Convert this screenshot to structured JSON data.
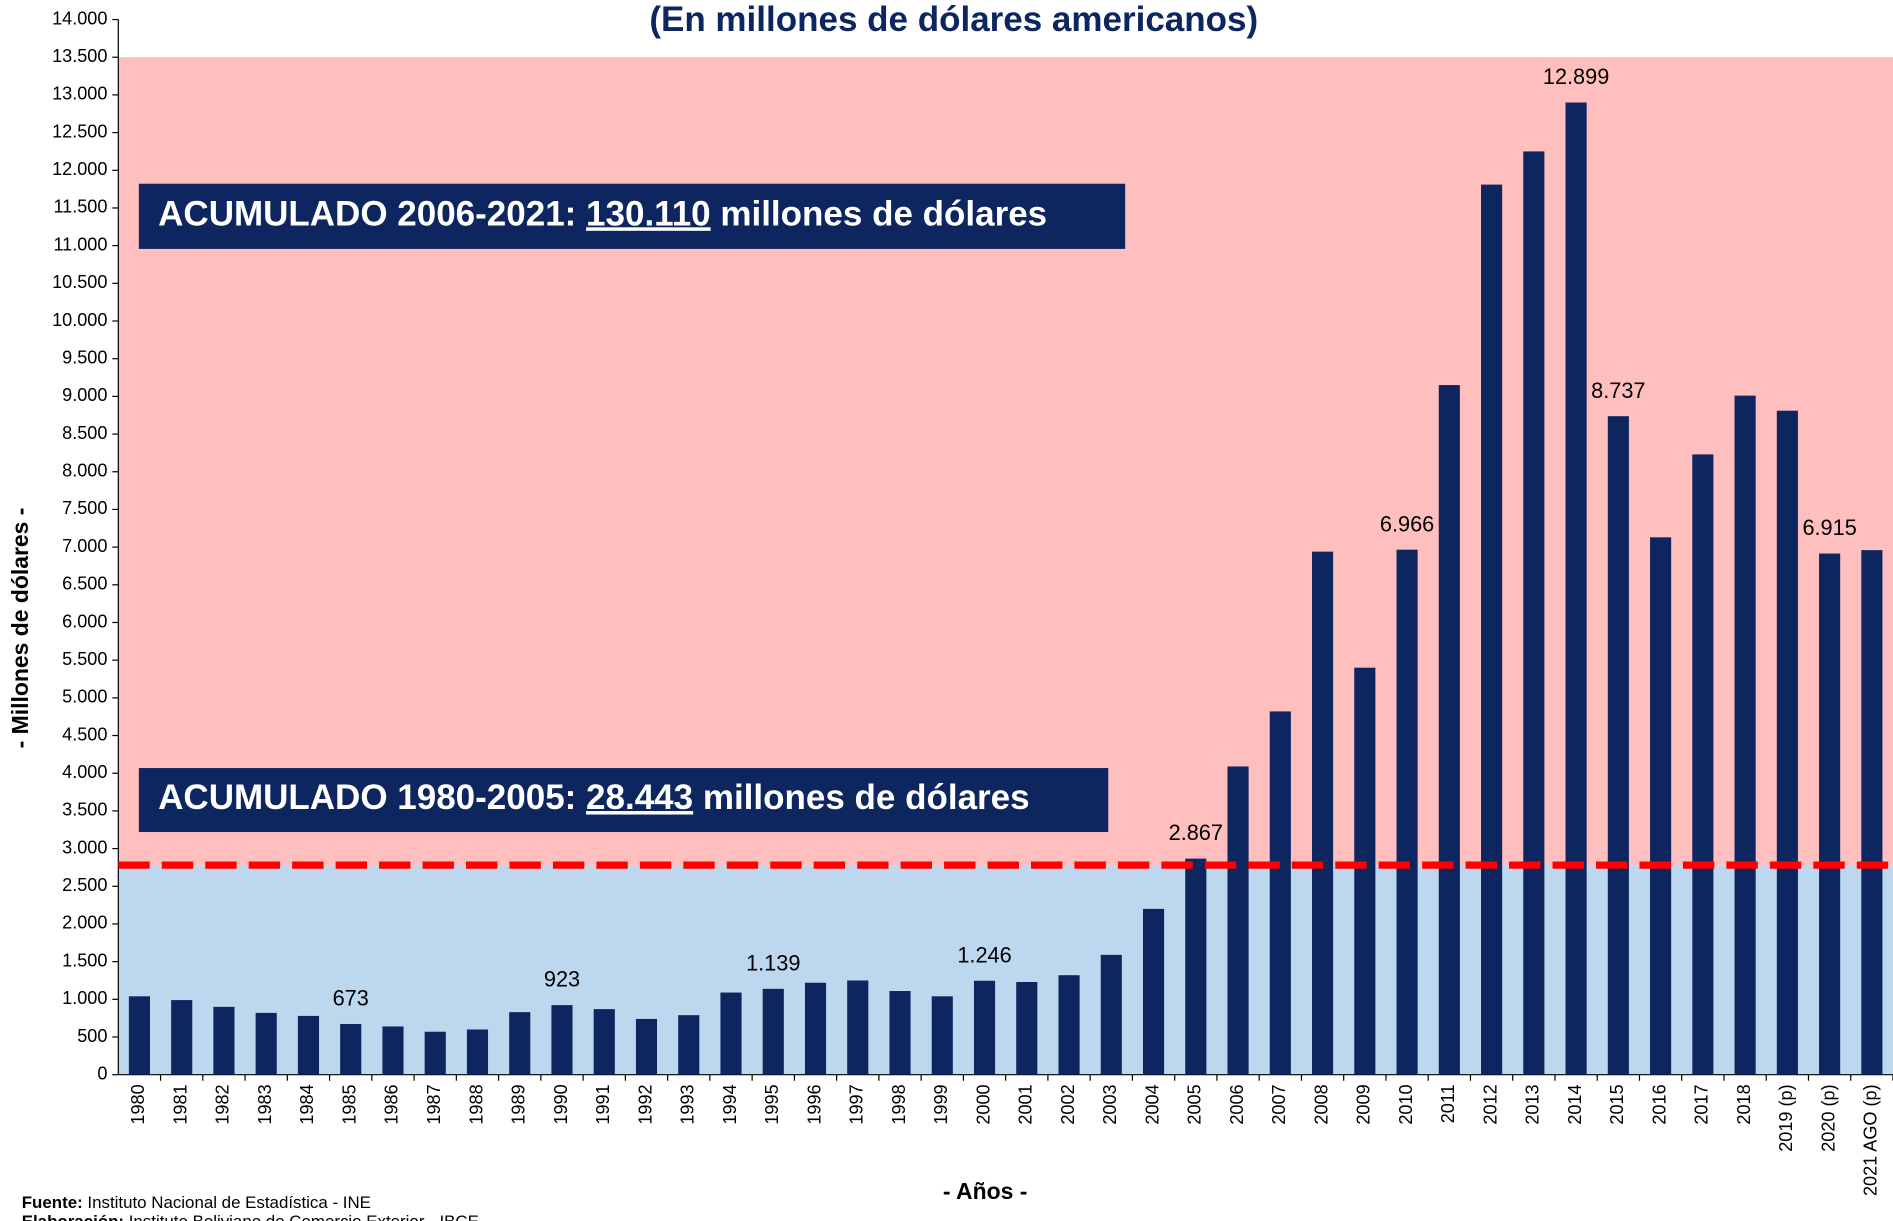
{
  "chart_data": {
    "type": "bar",
    "title": "(En millones de dólares americanos)",
    "y_axis_label": "- Millones de dólares -",
    "x_axis_label": "- Años -",
    "categories": [
      "1980",
      "1981",
      "1982",
      "1983",
      "1984",
      "1985",
      "1986",
      "1987",
      "1988",
      "1989",
      "1990",
      "1991",
      "1992",
      "1993",
      "1994",
      "1995",
      "1996",
      "1997",
      "1998",
      "1999",
      "2000",
      "2001",
      "2002",
      "2003",
      "2004",
      "2005",
      "2006",
      "2007",
      "2008",
      "2009",
      "2010",
      "2011",
      "2012",
      "2013",
      "2014",
      "2015",
      "2016",
      "2017",
      "2018",
      "2019 (p)",
      "2020 (p)",
      "2021 AGO (p)"
    ],
    "values": [
      1040,
      990,
      900,
      820,
      780,
      673,
      640,
      570,
      600,
      830,
      923,
      870,
      740,
      790,
      1090,
      1139,
      1220,
      1250,
      1110,
      1040,
      1246,
      1230,
      1320,
      1590,
      2200,
      2867,
      4090,
      4820,
      6940,
      5400,
      6966,
      9150,
      11810,
      12250,
      12899,
      8737,
      7130,
      8230,
      9010,
      8810,
      6915,
      6960
    ],
    "value_labels": [
      null,
      null,
      null,
      null,
      null,
      "673",
      null,
      null,
      null,
      null,
      "923",
      null,
      null,
      null,
      null,
      "1.139",
      null,
      null,
      null,
      null,
      "1.246",
      null,
      null,
      null,
      null,
      "2.867",
      null,
      null,
      null,
      null,
      "6.966",
      null,
      null,
      null,
      "12.899",
      "8.737",
      null,
      null,
      null,
      null,
      "6.915",
      null
    ],
    "color": "#0d2660",
    "ylim": [
      0,
      14000
    ],
    "yticks": [
      0,
      500,
      {
        "value": 1000,
        "label": "1.000"
      },
      {
        "value": 1500,
        "label": "1.500"
      },
      {
        "value": 2000,
        "label": "2.000"
      },
      {
        "value": 2500,
        "label": "2.500"
      },
      {
        "value": 3000,
        "label": "3.000"
      },
      {
        "value": 3500,
        "label": "3.500"
      },
      {
        "value": 4000,
        "label": "4.000"
      },
      {
        "value": 4500,
        "label": "4.500"
      },
      {
        "value": 5000,
        "label": "5.000"
      },
      {
        "value": 5500,
        "label": "5.500"
      },
      {
        "value": 6000,
        "label": "6.000"
      },
      {
        "value": 6500,
        "label": "6.500"
      },
      {
        "value": 7000,
        "label": "7.000"
      },
      {
        "value": 7500,
        "label": "7.500"
      },
      {
        "value": 8000,
        "label": "8.000"
      },
      {
        "value": 8500,
        "label": "8.500"
      },
      {
        "value": 9000,
        "label": "9.000"
      },
      {
        "value": 9500,
        "label": "9.500"
      },
      {
        "value": 10000,
        "label": "10.000"
      },
      {
        "value": 10500,
        "label": "10.500"
      },
      {
        "value": 11000,
        "label": "11.000"
      },
      {
        "value": 11500,
        "label": "11.500"
      },
      {
        "value": 12000,
        "label": "12.000"
      },
      {
        "value": 12500,
        "label": "12.500"
      },
      {
        "value": 13000,
        "label": "13.000"
      },
      {
        "value": 13500,
        "label": "13.500"
      },
      {
        "value": 14000,
        "label": "14.000"
      }
    ],
    "shaded_ranges": [
      {
        "from": 0,
        "to": 2780,
        "color": "#bdd7ee"
      },
      {
        "from": 2780,
        "to": 13500,
        "color": "#ffbfbf"
      }
    ],
    "reference_line": {
      "value": 2780,
      "color": "#ff0000"
    },
    "annotations": [
      {
        "prefix": "ACUMULADO 2006-2021: ",
        "amount": "130.110",
        "suffix": " millones de dólares"
      },
      {
        "prefix": "ACUMULADO 1980-2005: ",
        "amount": "28.443",
        "suffix": " millones de dólares"
      }
    ],
    "source": {
      "label": "Fuente:",
      "text": " Instituto Nacional de Estadística - INE"
    },
    "credit": {
      "label": "Elaboración:",
      "text": " Instituto Boliviano de Comercio Exterior - IBCE"
    }
  }
}
